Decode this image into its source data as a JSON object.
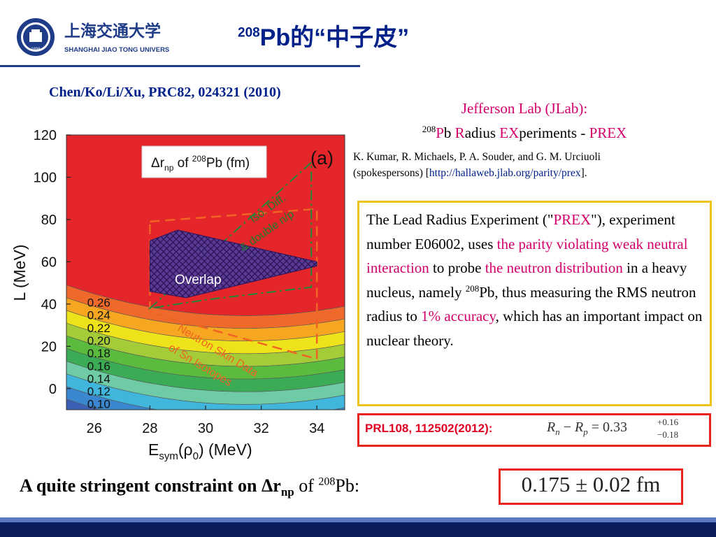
{
  "header": {
    "university_name_cn": "上海交通大学",
    "university_name_en": "SHANGHAI JIAO TONG UNIVERSITY",
    "logo_year": "1896",
    "title_sup": "208",
    "title_main": "Pb的“中子皮”"
  },
  "citation": "Chen/Ko/Li/Xu, PRC82, 024321 (2010)",
  "jlab": {
    "line1": "Jefferson Lab (JLab):",
    "line2_sup": "208",
    "line2_a": "P",
    "line2_b": "b ",
    "line2_c": "R",
    "line2_d": "adius ",
    "line2_e": "EX",
    "line2_f": "periments - ",
    "line2_g": "PREX"
  },
  "spokespersons": {
    "names": "K. Kumar, R. Michaels, P. A. Souder, and G. M. Urciuoli",
    "role_prefix": "(spokespersons) [",
    "url": "http://hallaweb.jlab.org/parity/prex",
    "role_suffix": "]."
  },
  "prex_paragraph": {
    "p1": "The Lead Radius Experiment (\"",
    "p2": "PREX",
    "p3": "\"), experiment number E06002, uses ",
    "p4": "the parity violating weak neutral interaction",
    "p5": " to probe ",
    "p6": "the neutron distribution",
    "p7": " in a heavy nucleus, namely ",
    "p8_sup": "208",
    "p9": "Pb, thus measuring the RMS neutron radius to ",
    "p10": "1% accuracy",
    "p11": ", which has an important impact on nuclear theory."
  },
  "prl": {
    "label": "PRL108, 112502(2012):",
    "formula_main": "R",
    "formula_sub_n": "n",
    "formula_minus": " − ",
    "formula_r": "R",
    "formula_sub_p": "p",
    "formula_eq": " = 0.33",
    "formula_up": "+0.16",
    "formula_dn": "−0.18"
  },
  "conclusion": {
    "bold": "A quite stringent constraint on Δr",
    "bold_sub": "np",
    "rest": " of ",
    "sup": "208",
    "end": "Pb:"
  },
  "result": "0.175 ± 0.02  fm",
  "chart_data": {
    "type": "heatmap",
    "title": "Δrnp of 208Pb (fm)",
    "title_parts": {
      "a": "Δr",
      "sub": "np",
      "b": " of ",
      "sup": "208",
      "c": "Pb (fm)"
    },
    "panel_label": "(a)",
    "xlabel": "Esym(ρ0) (MeV)",
    "xlabel_parts": {
      "a": "E",
      "sub1": "sym",
      "b": "(ρ",
      "sub2": "0",
      "c": ") (MeV)"
    },
    "ylabel": "L (MeV)",
    "xlim": [
      25,
      35
    ],
    "ylim": [
      -10,
      120
    ],
    "xticks": [
      "26",
      "28",
      "30",
      "32",
      "34"
    ],
    "yticks": [
      "0",
      "20",
      "40",
      "60",
      "80",
      "100",
      "120"
    ],
    "contour_levels": [
      "0.10",
      "0.12",
      "0.14",
      "0.16",
      "0.18",
      "0.20",
      "0.22",
      "0.24",
      "0.26"
    ],
    "band_colors": [
      "#3a5fb4",
      "#3a86cf",
      "#41b6dc",
      "#6ecba6",
      "#3bab55",
      "#5bbb3e",
      "#a4cc38",
      "#eee31a",
      "#f6a620",
      "#ef6a2a",
      "#e4262b"
    ],
    "annotations": {
      "overlap": "Overlap",
      "iso_line1": "Iso. Diff.",
      "iso_line2": "& double n/p",
      "sn_line1": "Neutron Skin Data",
      "sn_line2": "of Sn Isotopes"
    },
    "overlap_region": [
      [
        28,
        70
      ],
      [
        29,
        75
      ],
      [
        34,
        60
      ],
      [
        34,
        58
      ],
      [
        29.3,
        43
      ],
      [
        28,
        46
      ]
    ],
    "iso_diff_region": [
      [
        28,
        38
      ],
      [
        33.8,
        107
      ],
      [
        33.8,
        48
      ],
      [
        30,
        42
      ]
    ],
    "sn_skin_region": [
      [
        28,
        79
      ],
      [
        34,
        85
      ],
      [
        34,
        14
      ],
      [
        28,
        36
      ]
    ]
  },
  "colors": {
    "title_blue": "#00208a",
    "magenta": "#d4006a",
    "red_box": "#e8241d",
    "yellow_box": "#f0c419"
  }
}
